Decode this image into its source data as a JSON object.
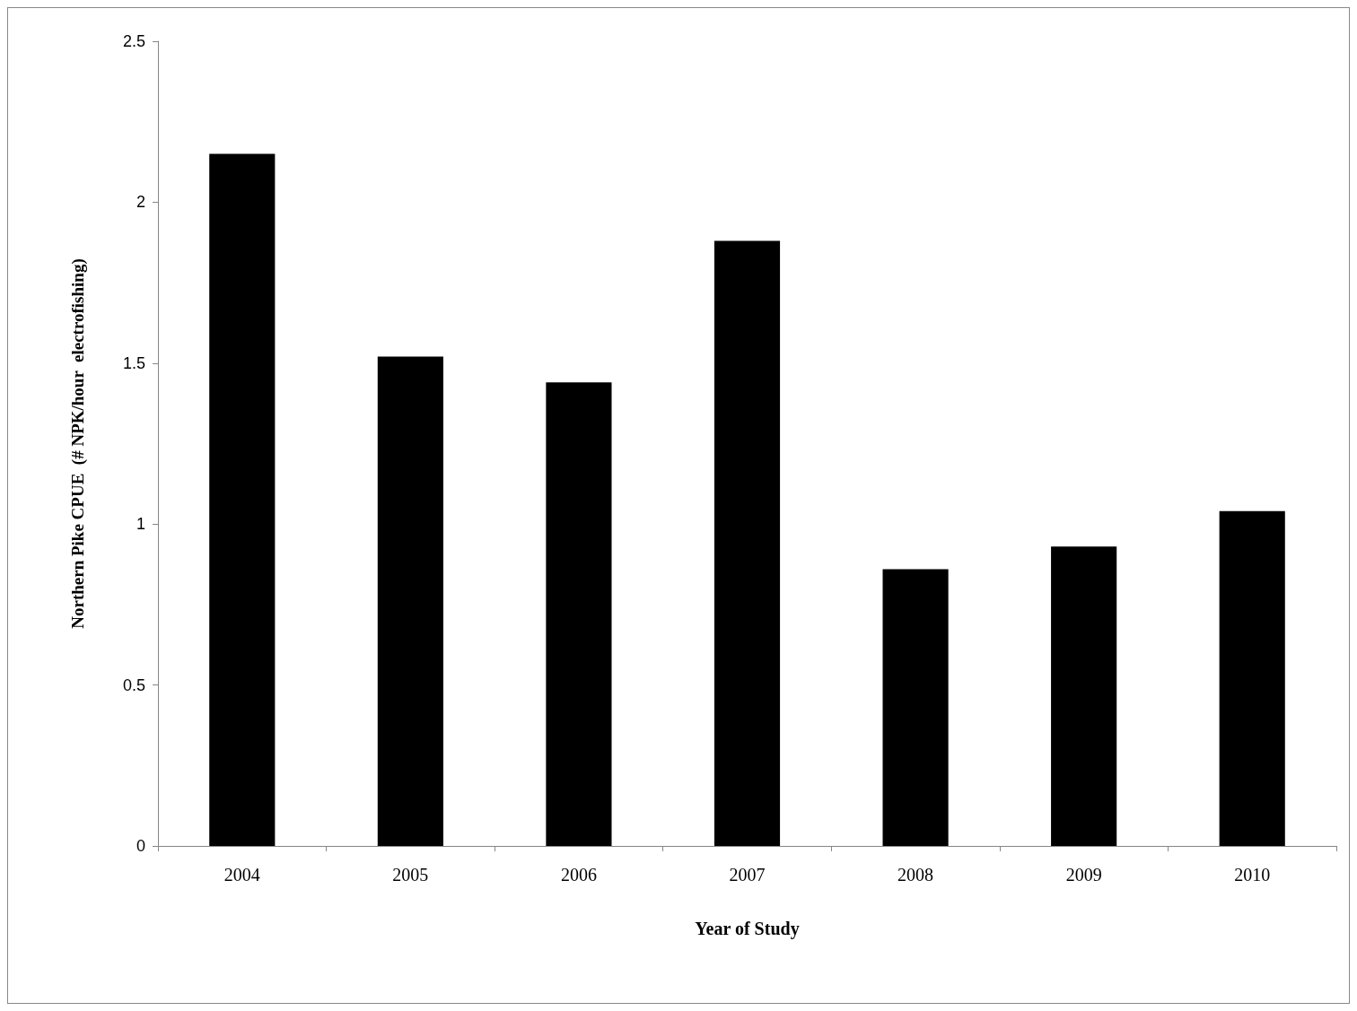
{
  "chart_data": {
    "type": "bar",
    "xlabel": "Year of Study",
    "ylabel": "Northern Pike CPUE  (# NPK/hour  electrofishing)",
    "categories": [
      "2004",
      "2005",
      "2006",
      "2007",
      "2008",
      "2009",
      "2010"
    ],
    "values": [
      2.15,
      1.52,
      1.44,
      1.88,
      0.86,
      0.93,
      1.04
    ],
    "color": "#000000",
    "ylim": [
      0,
      2.5
    ],
    "yticks": [
      0,
      0.5,
      1,
      1.5,
      2,
      2.5
    ],
    "grid": false
  }
}
